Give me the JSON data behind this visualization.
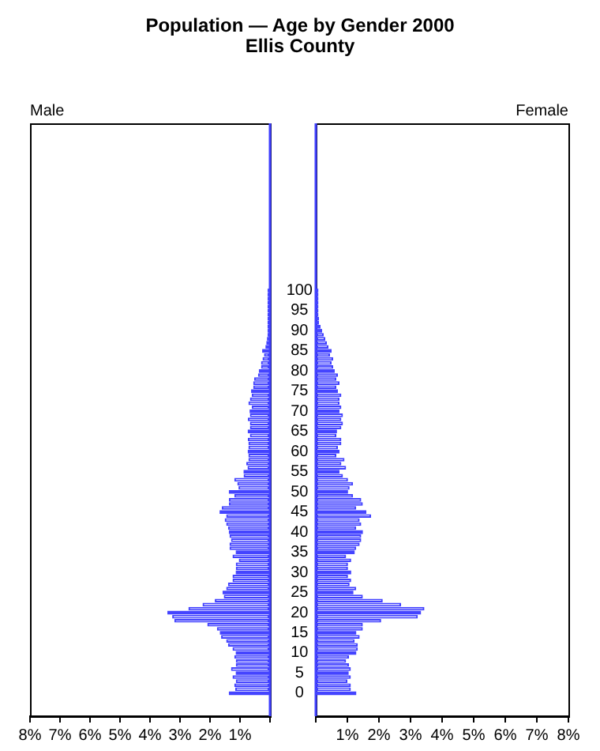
{
  "chart_data": [
    {
      "type": "bar",
      "orientation": "horizontal",
      "title": "Population — Age by Gender 2000",
      "subtitle": "Ellis County",
      "categories": [
        "100",
        null,
        null,
        null,
        null,
        "95",
        null,
        null,
        null,
        null,
        "90",
        null,
        null,
        null,
        null,
        "85",
        null,
        null,
        null,
        null,
        "80",
        null,
        null,
        null,
        null,
        "75",
        null,
        null,
        null,
        null,
        "70",
        null,
        null,
        null,
        null,
        "65",
        null,
        null,
        null,
        null,
        "60",
        null,
        null,
        null,
        null,
        "55",
        null,
        null,
        null,
        null,
        "50",
        null,
        null,
        null,
        null,
        "45",
        null,
        null,
        null,
        null,
        "40",
        null,
        null,
        null,
        null,
        "35",
        null,
        null,
        null,
        null,
        "30",
        null,
        null,
        null,
        null,
        "25",
        null,
        null,
        null,
        null,
        "20",
        null,
        null,
        null,
        null,
        "15",
        null,
        null,
        null,
        null,
        "10",
        null,
        null,
        null,
        null,
        "5",
        null,
        null,
        null,
        null,
        "0"
      ],
      "series": [
        {
          "name": "Male",
          "color": "#4040ff",
          "colors": [
            "#4444ff",
            "#4444ff",
            "#4444ff",
            "#4444ff",
            "#4444ff",
            "#4444ff",
            "#4444ff",
            "#4444ff",
            "#4444ff",
            "#4444ff",
            "#4444ff",
            "#4444ff",
            "#4444ff",
            "#4444ff",
            "#4444ff",
            "#4444ff",
            "#ffffff",
            "#ffffff",
            "#ffffff",
            "#ffffff",
            "#4444ff",
            "#ffffff",
            "#ffffff",
            "#ffffff",
            "#ffffff",
            "#4444ff",
            "#ffffff",
            "#ffffff",
            "#ffffff",
            "#ffffff",
            "#4444ff",
            "#ffffff",
            "#ffffff",
            "#ffffff",
            "#ffffff",
            "#4444ff",
            "#ffffff",
            "#ffffff",
            "#ffffff",
            "#ffffff",
            "#4444ff",
            "#ffffff",
            "#ffffff",
            "#ffffff",
            "#ffffff",
            "#4444ff",
            "#ffffff",
            "#ffffff",
            "#ffffff",
            "#ffffff",
            "#4444ff",
            "#ffffff",
            "#ffffff",
            "#ffffff",
            "#ffffff",
            "#4444ff",
            "#ffffff",
            "#ffffff",
            "#ffffff",
            "#ffffff",
            "#4444ff",
            "#ffffff",
            "#ffffff",
            "#ffffff",
            "#ffffff",
            "#4444ff",
            "#ffffff",
            "#ffffff",
            "#ffffff",
            "#ffffff",
            "#4444ff",
            "#ffffff",
            "#ffffff",
            "#ffffff",
            "#ffffff",
            "#4444ff",
            "#ffffff",
            "#ffffff",
            "#ffffff",
            "#ffffff",
            "#4444ff",
            "#ffffff",
            "#ffffff",
            "#ffffff",
            "#ffffff",
            "#4444ff",
            "#ffffff",
            "#ffffff",
            "#ffffff",
            "#ffffff",
            "#4444ff",
            "#ffffff",
            "#ffffff",
            "#ffffff",
            "#ffffff",
            "#4444ff",
            "#ffffff",
            "#ffffff",
            "#ffffff",
            "#ffffff",
            "#4444ff"
          ],
          "values": [
            0.08,
            0.08,
            0.08,
            0.08,
            0.08,
            0.08,
            0.08,
            0.08,
            0.08,
            0.08,
            0.08,
            0.08,
            0.1,
            0.12,
            0.15,
            0.26,
            0.2,
            0.25,
            0.3,
            0.3,
            0.37,
            0.4,
            0.53,
            0.56,
            0.56,
            0.63,
            0.61,
            0.67,
            0.72,
            0.61,
            0.68,
            0.67,
            0.74,
            0.67,
            0.67,
            0.74,
            0.67,
            0.74,
            0.72,
            0.72,
            0.74,
            0.72,
            0.72,
            0.79,
            0.75,
            0.88,
            0.88,
            1.19,
            1.09,
            1.05,
            1.37,
            1.19,
            1.37,
            1.37,
            1.61,
            1.68,
            1.46,
            1.51,
            1.46,
            1.4,
            1.37,
            1.35,
            1.3,
            1.35,
            1.35,
            1.14,
            1.25,
            1.04,
            1.14,
            1.14,
            1.14,
            1.25,
            1.25,
            1.4,
            1.46,
            1.58,
            1.54,
            1.84,
            2.25,
            2.72,
            3.42,
            3.26,
            3.19,
            2.09,
            1.77,
            1.67,
            1.63,
            1.46,
            1.4,
            1.25,
            1.14,
            1.19,
            1.14,
            1.14,
            1.3,
            1.14,
            1.25,
            1.14,
            1.19,
            1.16,
            1.37
          ]
        }
      ],
      "xlim": [
        8,
        0
      ],
      "xticks": [
        {
          "value": 8,
          "label": "8%"
        },
        {
          "value": 7,
          "label": "7%"
        },
        {
          "value": 6,
          "label": "6%"
        },
        {
          "value": 5,
          "label": "5%"
        },
        {
          "value": 4,
          "label": "4%"
        },
        {
          "value": 3,
          "label": "3%"
        },
        {
          "value": 2,
          "label": "2%"
        },
        {
          "value": 1,
          "label": "1%"
        },
        {
          "value": 0,
          "label": null
        }
      ],
      "grid": false,
      "legend": "top left",
      "tick_labels": "x"
    },
    {
      "type": "bar",
      "orientation": "horizontal",
      "categories": [
        "100",
        null,
        null,
        null,
        null,
        "95",
        null,
        null,
        null,
        null,
        "90",
        null,
        null,
        null,
        null,
        "85",
        null,
        null,
        null,
        null,
        "80",
        null,
        null,
        null,
        null,
        "75",
        null,
        null,
        null,
        null,
        "70",
        null,
        null,
        null,
        null,
        "65",
        null,
        null,
        null,
        null,
        "60",
        null,
        null,
        null,
        null,
        "55",
        null,
        null,
        null,
        null,
        "50",
        null,
        null,
        null,
        null,
        "45",
        null,
        null,
        null,
        null,
        "40",
        null,
        null,
        null,
        null,
        "35",
        null,
        null,
        null,
        null,
        "30",
        null,
        null,
        null,
        null,
        "25",
        null,
        null,
        null,
        null,
        "20",
        null,
        null,
        null,
        null,
        "15",
        null,
        null,
        null,
        null,
        "10",
        null,
        null,
        null,
        null,
        "5",
        null,
        null,
        null,
        null,
        "0"
      ],
      "series": [
        {
          "name": "Female",
          "color": "#4040ff",
          "colors": [
            "#4444ff",
            "#4444ff",
            "#4444ff",
            "#4444ff",
            "#4444ff",
            "#4444ff",
            "#4444ff",
            "#4444ff",
            "#4444ff",
            "#4444ff",
            "#4444ff",
            "#ffffff",
            "#ffffff",
            "#ffffff",
            "#ffffff",
            "#4444ff",
            "#ffffff",
            "#ffffff",
            "#ffffff",
            "#ffffff",
            "#4444ff",
            "#ffffff",
            "#ffffff",
            "#ffffff",
            "#ffffff",
            "#4444ff",
            "#ffffff",
            "#ffffff",
            "#ffffff",
            "#ffffff",
            "#4444ff",
            "#ffffff",
            "#ffffff",
            "#ffffff",
            "#ffffff",
            "#4444ff",
            "#ffffff",
            "#ffffff",
            "#ffffff",
            "#ffffff",
            "#4444ff",
            "#ffffff",
            "#ffffff",
            "#ffffff",
            "#ffffff",
            "#4444ff",
            "#ffffff",
            "#ffffff",
            "#ffffff",
            "#ffffff",
            "#4444ff",
            "#ffffff",
            "#ffffff",
            "#ffffff",
            "#ffffff",
            "#4444ff",
            "#ffffff",
            "#ffffff",
            "#ffffff",
            "#ffffff",
            "#4444ff",
            "#ffffff",
            "#ffffff",
            "#ffffff",
            "#ffffff",
            "#4444ff",
            "#ffffff",
            "#ffffff",
            "#ffffff",
            "#ffffff",
            "#4444ff",
            "#ffffff",
            "#ffffff",
            "#ffffff",
            "#ffffff",
            "#4444ff",
            "#ffffff",
            "#ffffff",
            "#ffffff",
            "#ffffff",
            "#4444ff",
            "#ffffff",
            "#ffffff",
            "#ffffff",
            "#ffffff",
            "#4444ff",
            "#ffffff",
            "#ffffff",
            "#ffffff",
            "#ffffff",
            "#4444ff",
            "#ffffff",
            "#ffffff",
            "#ffffff",
            "#ffffff",
            "#4444ff",
            "#ffffff",
            "#ffffff",
            "#ffffff",
            "#ffffff",
            "#4444ff"
          ],
          "values": [
            0.08,
            0.08,
            0.08,
            0.08,
            0.08,
            0.08,
            0.08,
            0.1,
            0.1,
            0.15,
            0.2,
            0.25,
            0.3,
            0.35,
            0.4,
            0.5,
            0.45,
            0.55,
            0.5,
            0.55,
            0.6,
            0.7,
            0.65,
            0.75,
            0.65,
            0.7,
            0.81,
            0.75,
            0.75,
            0.81,
            0.75,
            0.86,
            0.81,
            0.86,
            0.81,
            0.67,
            0.65,
            0.81,
            0.81,
            0.7,
            0.75,
            0.65,
            0.91,
            0.81,
            0.96,
            0.75,
            0.86,
            1.02,
            1.18,
            1.07,
            1.02,
            1.18,
            1.44,
            1.49,
            1.28,
            1.6,
            1.75,
            1.39,
            1.44,
            1.28,
            1.49,
            1.44,
            1.44,
            1.39,
            1.28,
            1.23,
            0.96,
            1.12,
            1.02,
            1.02,
            1.12,
            1.02,
            1.12,
            1.07,
            1.28,
            1.19,
            1.49,
            2.12,
            2.7,
            3.44,
            3.33,
            3.23,
            2.07,
            1.49,
            1.49,
            1.28,
            1.39,
            1.23,
            1.33,
            1.33,
            1.28,
            1.05,
            0.96,
            1.05,
            1.11,
            1.04,
            1.11,
            1.0,
            1.11,
            1.11,
            1.28
          ]
        }
      ],
      "xlim": [
        0,
        8
      ],
      "xticks": [
        {
          "value": 0,
          "label": null
        },
        {
          "value": 1,
          "label": "1%"
        },
        {
          "value": 2,
          "label": "2%"
        },
        {
          "value": 3,
          "label": "3%"
        },
        {
          "value": 4,
          "label": "4%"
        },
        {
          "value": 5,
          "label": "5%"
        },
        {
          "value": 6,
          "label": "6%"
        },
        {
          "value": 7,
          "label": "7%"
        },
        {
          "value": 8,
          "label": "8%"
        }
      ],
      "grid": false,
      "legend": "top right"
    }
  ]
}
